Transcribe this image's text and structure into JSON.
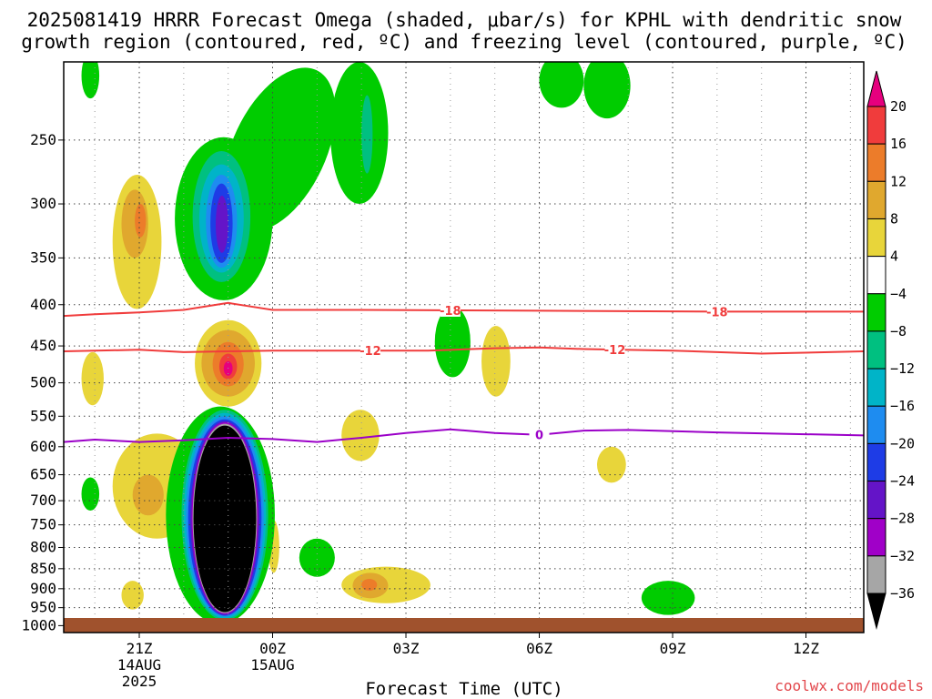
{
  "header": {
    "title_line1": "2025081419 HRRR Forecast Omega (shaded, μbar/s) for KPHL with dendritic snow",
    "title_line2": "growth region (contoured, red, ºC) and freezing level (contoured, purple, ºC)"
  },
  "footer": {
    "xlabel": "Forecast Time (UTC)",
    "watermark": "coolwx.com/models"
  },
  "chart_data": {
    "type": "heatmap",
    "title": "2025081419 HRRR Forecast Omega (shaded, μbar/s) for KPHL with dendritic snow growth region (contoured, red, ºC) and freezing level (contoured, purple, ºC)",
    "xlabel": "Forecast Time (UTC)",
    "ylabel": "",
    "x_domain_hours": [
      -1.7,
      16.3
    ],
    "y_domain_hpa": [
      200,
      1020
    ],
    "y_scale": "log",
    "grid": true,
    "x_ticks": [
      {
        "hour": 0,
        "label": "21Z",
        "sub1": "14AUG",
        "sub2": "2025"
      },
      {
        "hour": 3,
        "label": "00Z",
        "sub1": "15AUG",
        "sub2": ""
      },
      {
        "hour": 6,
        "label": "03Z",
        "sub1": "",
        "sub2": ""
      },
      {
        "hour": 9,
        "label": "06Z",
        "sub1": "",
        "sub2": ""
      },
      {
        "hour": 12,
        "label": "09Z",
        "sub1": "",
        "sub2": ""
      },
      {
        "hour": 15,
        "label": "12Z",
        "sub1": "",
        "sub2": ""
      }
    ],
    "y_ticks": [
      250,
      300,
      350,
      400,
      450,
      500,
      550,
      600,
      650,
      700,
      750,
      800,
      850,
      900,
      950,
      1000
    ],
    "colorbar": {
      "levels": [
        "20",
        "16",
        "12",
        "8",
        "4",
        "−4",
        "−8",
        "−12",
        "−16",
        "−20",
        "−24",
        "−28",
        "−32",
        "−36"
      ],
      "colors": [
        "#e6007e",
        "#f03c3c",
        "#ec7c2a",
        "#e0a82e",
        "#e8d53a",
        "#ffffff",
        "#00cc00",
        "#00c080",
        "#00b4c8",
        "#1e8cf0",
        "#1e3ce6",
        "#6414c8",
        "#a000c8",
        "#a6a6a6",
        "#000000"
      ]
    },
    "contours": [
      {
        "label": "-18",
        "color": "#f03c3c",
        "points": [
          [
            -1.7,
            413
          ],
          [
            -1,
            411
          ],
          [
            0,
            409
          ],
          [
            1,
            406
          ],
          [
            2,
            398
          ],
          [
            2.5,
            402
          ],
          [
            3,
            406
          ],
          [
            5,
            406
          ],
          [
            9,
            407
          ],
          [
            13,
            408
          ],
          [
            16.3,
            408
          ]
        ],
        "label_hours": [
          7,
          13
        ]
      },
      {
        "label": "-12",
        "color": "#f03c3c",
        "points": [
          [
            -1.7,
            457
          ],
          [
            0,
            455
          ],
          [
            1,
            458
          ],
          [
            2,
            457
          ],
          [
            3,
            456
          ],
          [
            5,
            456
          ],
          [
            6.5,
            456
          ],
          [
            8,
            453
          ],
          [
            9,
            452
          ],
          [
            10,
            454
          ],
          [
            12,
            456
          ],
          [
            14,
            460
          ],
          [
            16.3,
            457
          ]
        ],
        "label_hours": [
          5.2,
          10.7
        ]
      },
      {
        "label": "0",
        "color": "#9b00c8",
        "points": [
          [
            -1.7,
            592
          ],
          [
            -1,
            588
          ],
          [
            0,
            592
          ],
          [
            1,
            589
          ],
          [
            2,
            585
          ],
          [
            3,
            587
          ],
          [
            4,
            592
          ],
          [
            5,
            585
          ],
          [
            6,
            577
          ],
          [
            7,
            571
          ],
          [
            8,
            577
          ],
          [
            9,
            580
          ],
          [
            10,
            573
          ],
          [
            11,
            572
          ],
          [
            13,
            576
          ],
          [
            16.3,
            581
          ]
        ],
        "label_hours": [
          9
        ]
      }
    ],
    "regions": [
      {
        "level": 4,
        "hours": [
          -0.6,
          0.5
        ],
        "hpa": [
          276,
          405
        ],
        "rot": 0
      },
      {
        "level": 8,
        "hours": [
          -0.4,
          0.2
        ],
        "hpa": [
          288,
          350
        ],
        "rot": 0
      },
      {
        "level": 12,
        "hours": [
          -0.1,
          0.15
        ],
        "hpa": [
          300,
          330
        ],
        "rot": 0
      },
      {
        "level": 4,
        "hours": [
          -1.3,
          -0.8
        ],
        "hpa": [
          458,
          533
        ],
        "rot": 0
      },
      {
        "level": 4,
        "hours": [
          1.25,
          2.75
        ],
        "hpa": [
          418,
          535
        ],
        "rot": 0
      },
      {
        "level": 8,
        "hours": [
          1.4,
          2.6
        ],
        "hpa": [
          430,
          520
        ],
        "rot": 0
      },
      {
        "level": 12,
        "hours": [
          1.65,
          2.35
        ],
        "hpa": [
          445,
          505
        ],
        "rot": 0
      },
      {
        "level": 16,
        "hours": [
          1.8,
          2.2
        ],
        "hpa": [
          460,
          495
        ],
        "rot": 0
      },
      {
        "level": 20,
        "hours": [
          1.9,
          2.1
        ],
        "hpa": [
          470,
          490
        ],
        "rot": 0
      },
      {
        "level": 4,
        "hours": [
          -0.6,
          1.4
        ],
        "hpa": [
          578,
          780
        ],
        "rot": 0
      },
      {
        "level": 8,
        "hours": [
          -0.15,
          0.55
        ],
        "hpa": [
          650,
          730
        ],
        "rot": 0
      },
      {
        "level": 4,
        "hours": [
          4.55,
          5.4
        ],
        "hpa": [
          540,
          625
        ],
        "rot": 0
      },
      {
        "level": 4,
        "hours": [
          4.55,
          6.55
        ],
        "hpa": [
          845,
          938
        ],
        "rot": 0
      },
      {
        "level": 8,
        "hours": [
          4.8,
          5.6
        ],
        "hpa": [
          860,
          925
        ],
        "rot": 0
      },
      {
        "level": 12,
        "hours": [
          5.0,
          5.35
        ],
        "hpa": [
          875,
          905
        ],
        "rot": 0
      },
      {
        "level": 4,
        "hours": [
          7.7,
          8.35
        ],
        "hpa": [
          425,
          520
        ],
        "rot": 0
      },
      {
        "level": 4,
        "hours": [
          10.3,
          10.95
        ],
        "hpa": [
          600,
          665
        ],
        "rot": 0
      },
      {
        "level": 4,
        "hours": [
          -0.4,
          0.1
        ],
        "hpa": [
          880,
          955
        ],
        "rot": 0
      },
      {
        "level": 4,
        "hours": [
          2.9,
          3.15
        ],
        "hpa": [
          740,
          860
        ],
        "rot": 0
      },
      {
        "level": -4,
        "hours": [
          -1.3,
          -0.9
        ],
        "hpa": [
          655,
          720
        ],
        "rot": 0
      },
      {
        "level": -4,
        "hours": [
          0.8,
          3.0
        ],
        "hpa": [
          248,
          395
        ],
        "rot": 0
      },
      {
        "level": -4,
        "hours": [
          2.1,
          4.2
        ],
        "hpa": [
          200,
          330
        ],
        "rot": 25
      },
      {
        "level": -4,
        "hours": [
          4.3,
          5.6
        ],
        "hpa": [
          200,
          300
        ],
        "rot": 0
      },
      {
        "level": -4,
        "hours": [
          -1.3,
          -0.9
        ],
        "hpa": [
          195,
          222
        ],
        "rot": 0
      },
      {
        "level": -4,
        "hours": [
          9.0,
          10.0
        ],
        "hpa": [
          195,
          228
        ],
        "rot": 0
      },
      {
        "level": -4,
        "hours": [
          10.0,
          11.05
        ],
        "hpa": [
          195,
          235
        ],
        "rot": 0
      },
      {
        "level": -4,
        "hours": [
          6.65,
          7.45
        ],
        "hpa": [
          402,
          492
        ],
        "rot": 0
      },
      {
        "level": -4,
        "hours": [
          11.3,
          12.5
        ],
        "hpa": [
          880,
          970
        ],
        "rot": 0
      },
      {
        "level": -4,
        "hours": [
          3.6,
          4.4
        ],
        "hpa": [
          780,
          870
        ],
        "rot": 0
      },
      {
        "level": -4,
        "hours": [
          0.6,
          3.05
        ],
        "hpa": [
          535,
          995
        ],
        "rot": 0
      },
      {
        "level": -8,
        "hours": [
          1.2,
          2.5
        ],
        "hpa": [
          258,
          375
        ],
        "rot": 0
      },
      {
        "level": -8,
        "hours": [
          5.0,
          5.25
        ],
        "hpa": [
          220,
          275
        ],
        "rot": 0
      },
      {
        "level": -8,
        "hours": [
          0.95,
          2.9
        ],
        "hpa": [
          540,
          985
        ],
        "rot": 0
      },
      {
        "level": -12,
        "hours": [
          1.35,
          2.35
        ],
        "hpa": [
          268,
          365
        ],
        "rot": 0
      },
      {
        "level": -12,
        "hours": [
          1.0,
          2.85
        ],
        "hpa": [
          545,
          980
        ],
        "rot": 0
      },
      {
        "level": -16,
        "hours": [
          1.5,
          2.2
        ],
        "hpa": [
          276,
          360
        ],
        "rot": 0
      },
      {
        "level": -16,
        "hours": [
          1.05,
          2.8
        ],
        "hpa": [
          550,
          975
        ],
        "rot": 0
      },
      {
        "level": -20,
        "hours": [
          1.6,
          2.1
        ],
        "hpa": [
          283,
          355
        ],
        "rot": 0
      },
      {
        "level": -20,
        "hours": [
          1.1,
          2.75
        ],
        "hpa": [
          555,
          972
        ],
        "rot": 0
      },
      {
        "level": -24,
        "hours": [
          1.72,
          2.0
        ],
        "hpa": [
          293,
          345
        ],
        "rot": 0
      },
      {
        "level": -24,
        "hours": [
          1.15,
          2.7
        ],
        "hpa": [
          558,
          970
        ],
        "rot": 0
      },
      {
        "level": -28,
        "hours": [
          1.18,
          2.67
        ],
        "hpa": [
          560,
          967
        ],
        "rot": 0
      },
      {
        "level": -32,
        "hours": [
          1.2,
          2.65
        ],
        "hpa": [
          562,
          965
        ],
        "rot": 0
      },
      {
        "level": -36,
        "hours": [
          1.22,
          2.63
        ],
        "hpa": [
          565,
          962
        ],
        "rot": 0
      }
    ]
  }
}
